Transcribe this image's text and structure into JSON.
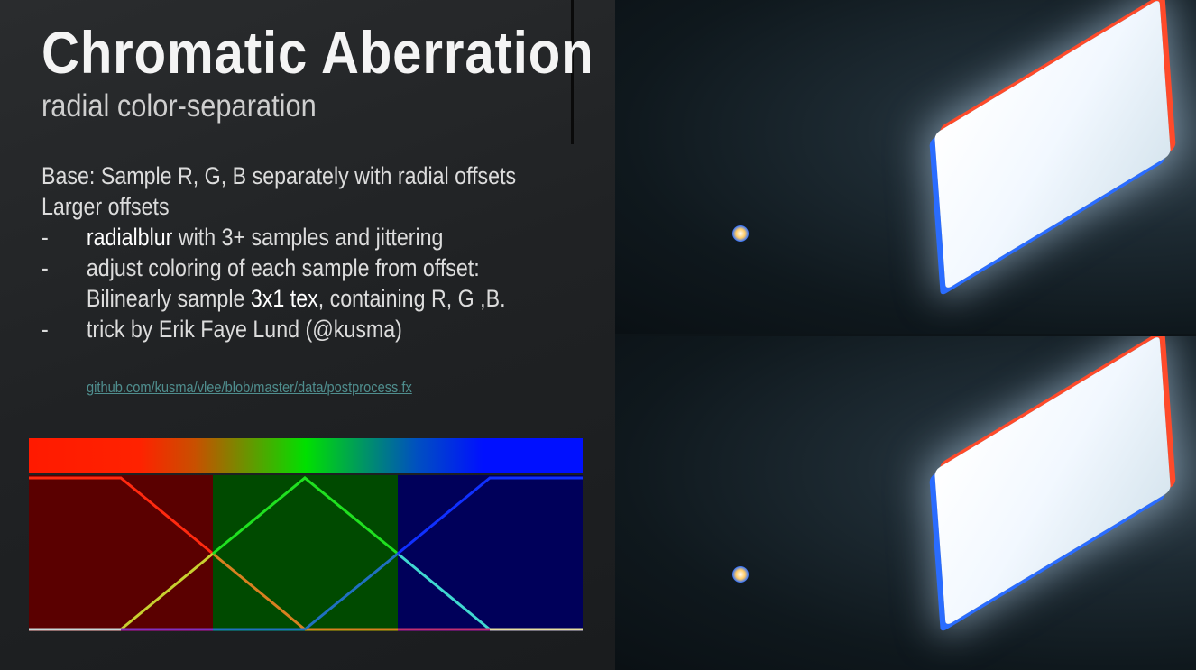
{
  "slide": {
    "title": "Chromatic Aberration",
    "subtitle": "radial color-separation",
    "lines": {
      "base": "Base: Sample R, G, B separately with radial offsets",
      "larger": "Larger offsets",
      "bullet_dash": "-",
      "b1_bold": "radialblur",
      "b1_rest": " with 3+ samples and jittering",
      "b2": "adjust coloring of each sample from offset:",
      "b2_cont_a": "Bilinearly sample ",
      "b2_cont_bold": "3x1 tex",
      "b2_cont_b": ", containing R, G ,B.",
      "b3": "trick by Erik Faye Lund (@kusma)"
    },
    "link": "github.com/kusma/vlee/blob/master/data/postprocess.fx"
  },
  "colors": {
    "red": "#ff1a00",
    "green": "#00e000",
    "blue": "#0010ff",
    "red_bg": "#5a0000",
    "green_bg": "#004a00",
    "blue_bg": "#00005a",
    "link": "#4f8e8e"
  }
}
